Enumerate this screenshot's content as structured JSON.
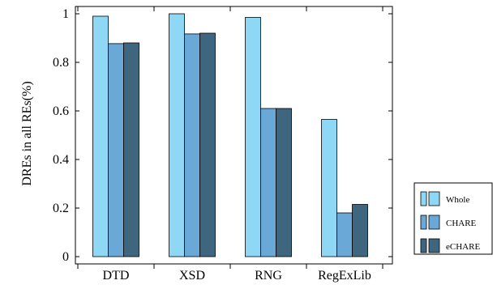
{
  "chart_data": {
    "type": "bar",
    "ylabel": "DREs in all REs(%)",
    "xlabel": "",
    "title": "",
    "ylim": [
      0,
      1
    ],
    "yticks": [
      0,
      0.2,
      0.4,
      0.6,
      0.8,
      1
    ],
    "ytick_labels": [
      "0",
      "0.2",
      "0.4",
      "0.6",
      "0.8",
      "1"
    ],
    "categories": [
      "DTD",
      "XSD",
      "RNG",
      "RegExLib"
    ],
    "series": [
      {
        "name": "Whole",
        "values": [
          0.99,
          1.0,
          0.985,
          0.565
        ],
        "color": "#8fd8f5"
      },
      {
        "name": "CHARE",
        "values": [
          0.877,
          0.917,
          0.61,
          0.18
        ],
        "color": "#6aa8d8"
      },
      {
        "name": "eCHARE",
        "values": [
          0.88,
          0.92,
          0.61,
          0.215
        ],
        "color": "#3f667f"
      }
    ],
    "grid": false,
    "legend_position": "right"
  }
}
